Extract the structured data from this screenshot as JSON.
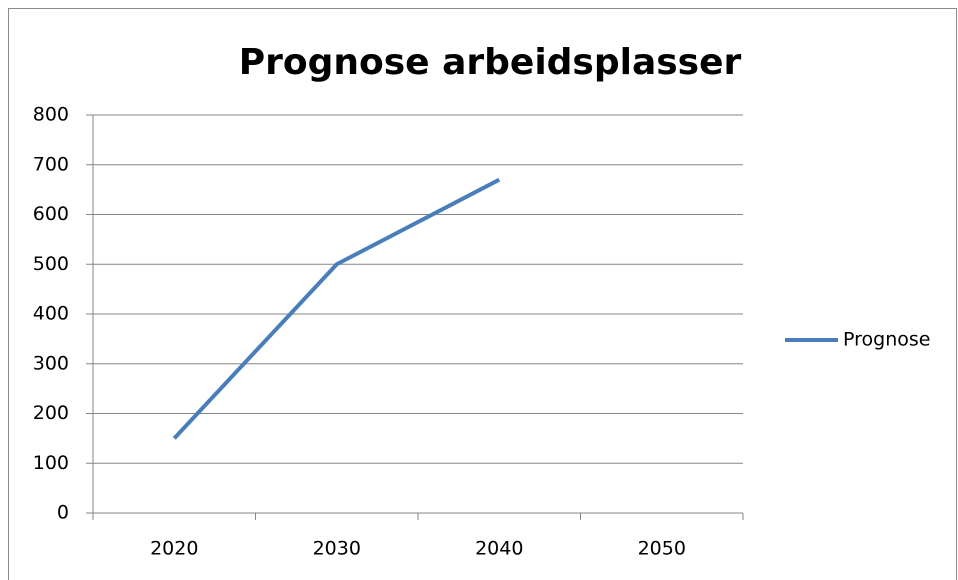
{
  "chart_data": {
    "type": "line",
    "title": "Prognose arbeidsplasser",
    "categories": [
      "2020",
      "2030",
      "2040",
      "2050"
    ],
    "series": [
      {
        "name": "Prognose",
        "color": "#4a7ebb",
        "values": [
          150,
          500,
          670,
          null
        ]
      }
    ],
    "ylim": [
      0,
      800
    ],
    "yticks": [
      0,
      100,
      200,
      300,
      400,
      500,
      600,
      700,
      800
    ],
    "grid": true,
    "legend": "right"
  }
}
